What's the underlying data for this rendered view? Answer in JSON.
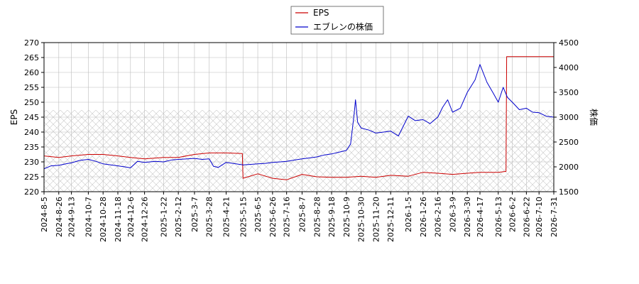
{
  "chart_data": {
    "type": "line",
    "title": "",
    "xlabel": "",
    "ylabel_left": "EPS",
    "ylabel_right": "株価",
    "grid": true,
    "legend_position": "top-center",
    "ylim_left": [
      220,
      270
    ],
    "yticks_left": [
      220,
      225,
      230,
      235,
      240,
      245,
      250,
      255,
      260,
      265,
      270
    ],
    "ylim_right": [
      1500,
      4500
    ],
    "yticks_right": [
      1500,
      2000,
      2500,
      3000,
      3500,
      4000,
      4500
    ],
    "x_ticks": [
      "2024-8-5",
      "2024-8-26",
      "2024-9-13",
      "2024-10-7",
      "2024-10-28",
      "2024-11-18",
      "2024-12-6",
      "2024-12-26",
      "2025-1-22",
      "2025-2-12",
      "2025-3-7",
      "2025-3-28",
      "2025-4-21",
      "2025-5-15",
      "2025-6-5",
      "2025-6-26",
      "2025-7-16",
      "2025-8-7",
      "2025-8-28",
      "2025-9-18",
      "2025-10-9",
      "2025-10-30",
      "2025-11-20",
      "2025-12-11",
      "2026-1-5",
      "2026-1-26",
      "2026-2-16",
      "2026-3-9",
      "2026-3-30",
      "2026-4-17",
      "2026-5-13",
      "2026-6-2",
      "2026-6-22",
      "2026-7-10",
      "2026-7-31"
    ],
    "series": [
      {
        "name": "EPS",
        "axis": "left",
        "color": "#cc0000",
        "points": [
          [
            "2024-8-5",
            232
          ],
          [
            "2024-8-26",
            231.5
          ],
          [
            "2024-9-13",
            232
          ],
          [
            "2024-10-7",
            232.5
          ],
          [
            "2024-10-28",
            232.5
          ],
          [
            "2024-11-18",
            232
          ],
          [
            "2024-12-6",
            231.5
          ],
          [
            "2024-12-26",
            231
          ],
          [
            "2025-1-22",
            231.5
          ],
          [
            "2025-2-12",
            231.5
          ],
          [
            "2025-3-7",
            232.5
          ],
          [
            "2025-3-28",
            233
          ],
          [
            "2025-4-21",
            233
          ],
          [
            "2025-5-14",
            232.8
          ],
          [
            "2025-5-15",
            224.5
          ],
          [
            "2025-6-5",
            226
          ],
          [
            "2025-6-26",
            224.5
          ],
          [
            "2025-7-16",
            224
          ],
          [
            "2025-8-7",
            225.8
          ],
          [
            "2025-8-28",
            225
          ],
          [
            "2025-9-18",
            224.8
          ],
          [
            "2025-10-9",
            224.8
          ],
          [
            "2025-10-30",
            225.2
          ],
          [
            "2025-11-20",
            224.8
          ],
          [
            "2025-12-11",
            225.5
          ],
          [
            "2026-1-5",
            225.2
          ],
          [
            "2026-1-26",
            226.5
          ],
          [
            "2026-2-16",
            226.2
          ],
          [
            "2026-3-9",
            225.8
          ],
          [
            "2026-3-30",
            226.2
          ],
          [
            "2026-4-17",
            226.5
          ],
          [
            "2026-5-13",
            226.5
          ],
          [
            "2026-5-24",
            226.8
          ],
          [
            "2026-5-25",
            265.3
          ],
          [
            "2026-6-2",
            265.3
          ],
          [
            "2026-6-22",
            265.3
          ],
          [
            "2026-7-10",
            265.3
          ],
          [
            "2026-7-31",
            265.3
          ]
        ]
      },
      {
        "name": "エブレンの株価",
        "axis": "right",
        "color": "#0000cc",
        "points": [
          [
            "2024-8-5",
            1960
          ],
          [
            "2024-8-15",
            2020
          ],
          [
            "2024-8-26",
            2030
          ],
          [
            "2024-9-5",
            2060
          ],
          [
            "2024-9-13",
            2080
          ],
          [
            "2024-9-25",
            2130
          ],
          [
            "2024-10-7",
            2150
          ],
          [
            "2024-10-18",
            2110
          ],
          [
            "2024-10-28",
            2060
          ],
          [
            "2024-11-8",
            2040
          ],
          [
            "2024-11-18",
            2020
          ],
          [
            "2024-11-28",
            2000
          ],
          [
            "2024-12-6",
            1980
          ],
          [
            "2024-12-16",
            2110
          ],
          [
            "2024-12-26",
            2090
          ],
          [
            "2025-1-10",
            2110
          ],
          [
            "2025-1-22",
            2100
          ],
          [
            "2025-2-3",
            2140
          ],
          [
            "2025-2-12",
            2150
          ],
          [
            "2025-2-25",
            2160
          ],
          [
            "2025-3-7",
            2170
          ],
          [
            "2025-3-18",
            2150
          ],
          [
            "2025-3-28",
            2160
          ],
          [
            "2025-4-3",
            2010
          ],
          [
            "2025-4-10",
            1990
          ],
          [
            "2025-4-21",
            2090
          ],
          [
            "2025-5-5",
            2060
          ],
          [
            "2025-5-15",
            2040
          ],
          [
            "2025-5-26",
            2050
          ],
          [
            "2025-6-5",
            2060
          ],
          [
            "2025-6-16",
            2070
          ],
          [
            "2025-6-26",
            2090
          ],
          [
            "2025-7-7",
            2100
          ],
          [
            "2025-7-16",
            2110
          ],
          [
            "2025-7-28",
            2140
          ],
          [
            "2025-8-7",
            2160
          ],
          [
            "2025-8-18",
            2180
          ],
          [
            "2025-8-28",
            2200
          ],
          [
            "2025-9-8",
            2240
          ],
          [
            "2025-9-18",
            2260
          ],
          [
            "2025-9-30",
            2300
          ],
          [
            "2025-10-9",
            2330
          ],
          [
            "2025-10-15",
            2460
          ],
          [
            "2025-10-20",
            3050
          ],
          [
            "2025-10-22",
            3350
          ],
          [
            "2025-10-25",
            2900
          ],
          [
            "2025-10-30",
            2780
          ],
          [
            "2025-11-10",
            2740
          ],
          [
            "2025-11-20",
            2680
          ],
          [
            "2025-12-1",
            2700
          ],
          [
            "2025-12-11",
            2720
          ],
          [
            "2025-12-22",
            2620
          ],
          [
            "2026-1-5",
            3020
          ],
          [
            "2026-1-15",
            2930
          ],
          [
            "2026-1-26",
            2950
          ],
          [
            "2026-2-5",
            2870
          ],
          [
            "2026-2-16",
            3000
          ],
          [
            "2026-2-23",
            3200
          ],
          [
            "2026-3-2",
            3350
          ],
          [
            "2026-3-9",
            3100
          ],
          [
            "2026-3-20",
            3180
          ],
          [
            "2026-3-30",
            3500
          ],
          [
            "2026-4-10",
            3750
          ],
          [
            "2026-4-17",
            4060
          ],
          [
            "2026-4-27",
            3700
          ],
          [
            "2026-5-6",
            3480
          ],
          [
            "2026-5-13",
            3300
          ],
          [
            "2026-5-20",
            3600
          ],
          [
            "2026-5-26",
            3400
          ],
          [
            "2026-6-2",
            3300
          ],
          [
            "2026-6-12",
            3150
          ],
          [
            "2026-6-22",
            3180
          ],
          [
            "2026-7-1",
            3100
          ],
          [
            "2026-7-10",
            3090
          ],
          [
            "2026-7-20",
            3020
          ],
          [
            "2026-7-31",
            3000
          ]
        ]
      }
    ]
  },
  "legend": {
    "items": [
      {
        "label": "EPS",
        "color": "#cc0000"
      },
      {
        "label": "エブレンの株価",
        "color": "#0000cc"
      }
    ]
  }
}
